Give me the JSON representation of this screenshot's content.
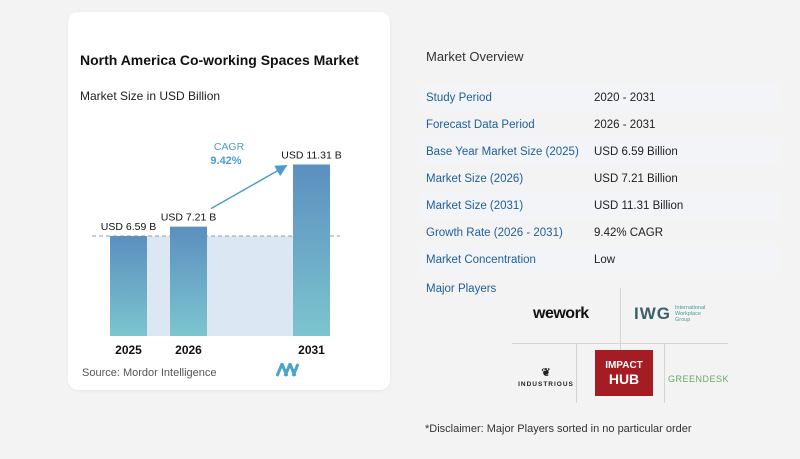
{
  "chart": {
    "title": "North America Co-working Spaces Market",
    "subtitle": "Market Size in USD Billion",
    "source": "Source:  Mordor Intelligence",
    "cagr_label": "CAGR",
    "cagr_value": "9.42%"
  },
  "chart_data": {
    "type": "bar",
    "categories": [
      "2025",
      "2026",
      "2031"
    ],
    "values": [
      6.59,
      7.21,
      11.31
    ],
    "data_labels": [
      "USD 6.59 B",
      "USD 7.21 B",
      "USD 11.31 B"
    ],
    "title": "North America Co-working Spaces Market",
    "subtitle": "Market Size in USD Billion",
    "ylim": [
      0,
      12
    ],
    "grid": false,
    "colors": {
      "bar_top": "#5b8fbf",
      "bar_bottom": "#7cc5cf",
      "shade": "#dbe7f3",
      "arrow": "#4f9bd0"
    }
  },
  "overview": {
    "title": "Market Overview",
    "rows": [
      {
        "key": "Study Period",
        "value": "2020 - 2031"
      },
      {
        "key": "Forecast Data Period",
        "value": "2026 - 2031"
      },
      {
        "key": "Base Year Market Size (2025)",
        "value": "USD 6.59 Billion"
      },
      {
        "key": "Market Size (2026)",
        "value": "USD 7.21 Billion"
      },
      {
        "key": "Market Size (2031)",
        "value": "USD 11.31 Billion"
      },
      {
        "key": "Growth Rate (2026 - 2031)",
        "value": "9.42% CAGR"
      },
      {
        "key": "Market Concentration",
        "value": "Low"
      }
    ]
  },
  "players": {
    "label": "Major Players",
    "wework": "wework",
    "iwg_mark": "IWG",
    "iwg_text": [
      "International",
      "Workplace",
      "Group"
    ],
    "impact_top": "IMPACT",
    "impact_bottom": "HUB",
    "industrious": "INDUSTRIOUS",
    "greendesk": "GREENDESK"
  },
  "disclaimer": "*Disclaimer: Major Players sorted in no particular order"
}
